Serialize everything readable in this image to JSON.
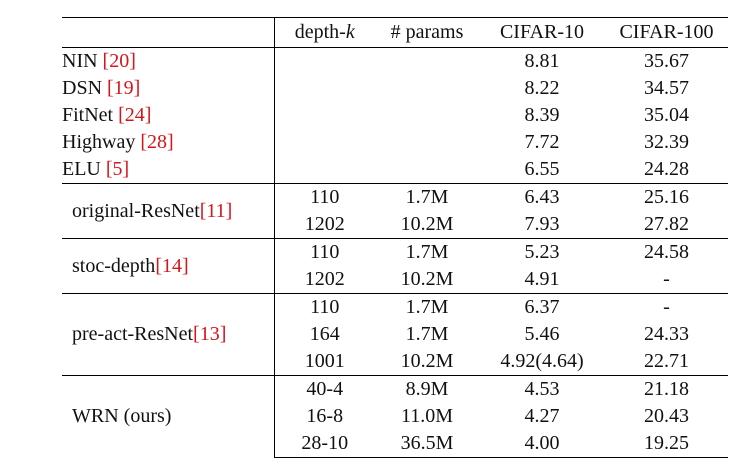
{
  "header": {
    "method": "",
    "depth": "depth-",
    "depth_k": "k",
    "params": "# params",
    "cifar10": "CIFAR-10",
    "cifar100": "CIFAR-100"
  },
  "baselines": [
    {
      "name": "NIN ",
      "cite": "[20]",
      "cifar10": "8.81",
      "cifar100": "35.67"
    },
    {
      "name": "DSN ",
      "cite": "[19]",
      "cifar10": "8.22",
      "cifar100": "34.57"
    },
    {
      "name": "FitNet ",
      "cite": "[24]",
      "cifar10": "8.39",
      "cifar100": "35.04"
    },
    {
      "name": "Highway ",
      "cite": "[28]",
      "cifar10": "7.72",
      "cifar100": "32.39"
    },
    {
      "name": "ELU ",
      "cite": "[5]",
      "cifar10": "6.55",
      "cifar100": "24.28"
    }
  ],
  "groups": [
    {
      "name": "original-ResNet",
      "cite": "[11]",
      "rows": [
        {
          "depth": "110",
          "params": "1.7M",
          "cifar10": "6.43",
          "cifar100": "25.16"
        },
        {
          "depth": "1202",
          "params": "10.2M",
          "cifar10": "7.93",
          "cifar100": "27.82"
        }
      ]
    },
    {
      "name": "stoc-depth",
      "cite": "[14]",
      "rows": [
        {
          "depth": "110",
          "params": "1.7M",
          "cifar10": "5.23",
          "cifar100": "24.58"
        },
        {
          "depth": "1202",
          "params": "10.2M",
          "cifar10": "4.91",
          "cifar100": "-"
        }
      ]
    },
    {
      "name": "pre-act-ResNet",
      "cite": "[13]",
      "rows": [
        {
          "depth": "110",
          "params": "1.7M",
          "cifar10": "6.37",
          "cifar100": "-"
        },
        {
          "depth": "164",
          "params": "1.7M",
          "cifar10": "5.46",
          "cifar100": "24.33"
        },
        {
          "depth": "1001",
          "params": "10.2M",
          "cifar10": "4.92(4.64)",
          "cifar100": "22.71"
        }
      ]
    },
    {
      "name": "WRN (ours)",
      "cite": "",
      "rows": [
        {
          "depth": "40-4",
          "params": "8.9M",
          "cifar10": "4.53",
          "cifar100": "21.18"
        },
        {
          "depth": "16-8",
          "params": "11.0M",
          "cifar10": "4.27",
          "cifar100": "20.43"
        },
        {
          "depth": "28-10",
          "params": "36.5M",
          "cifar10": "4.00",
          "cifar100": "19.25",
          "bold": true
        }
      ]
    }
  ]
}
